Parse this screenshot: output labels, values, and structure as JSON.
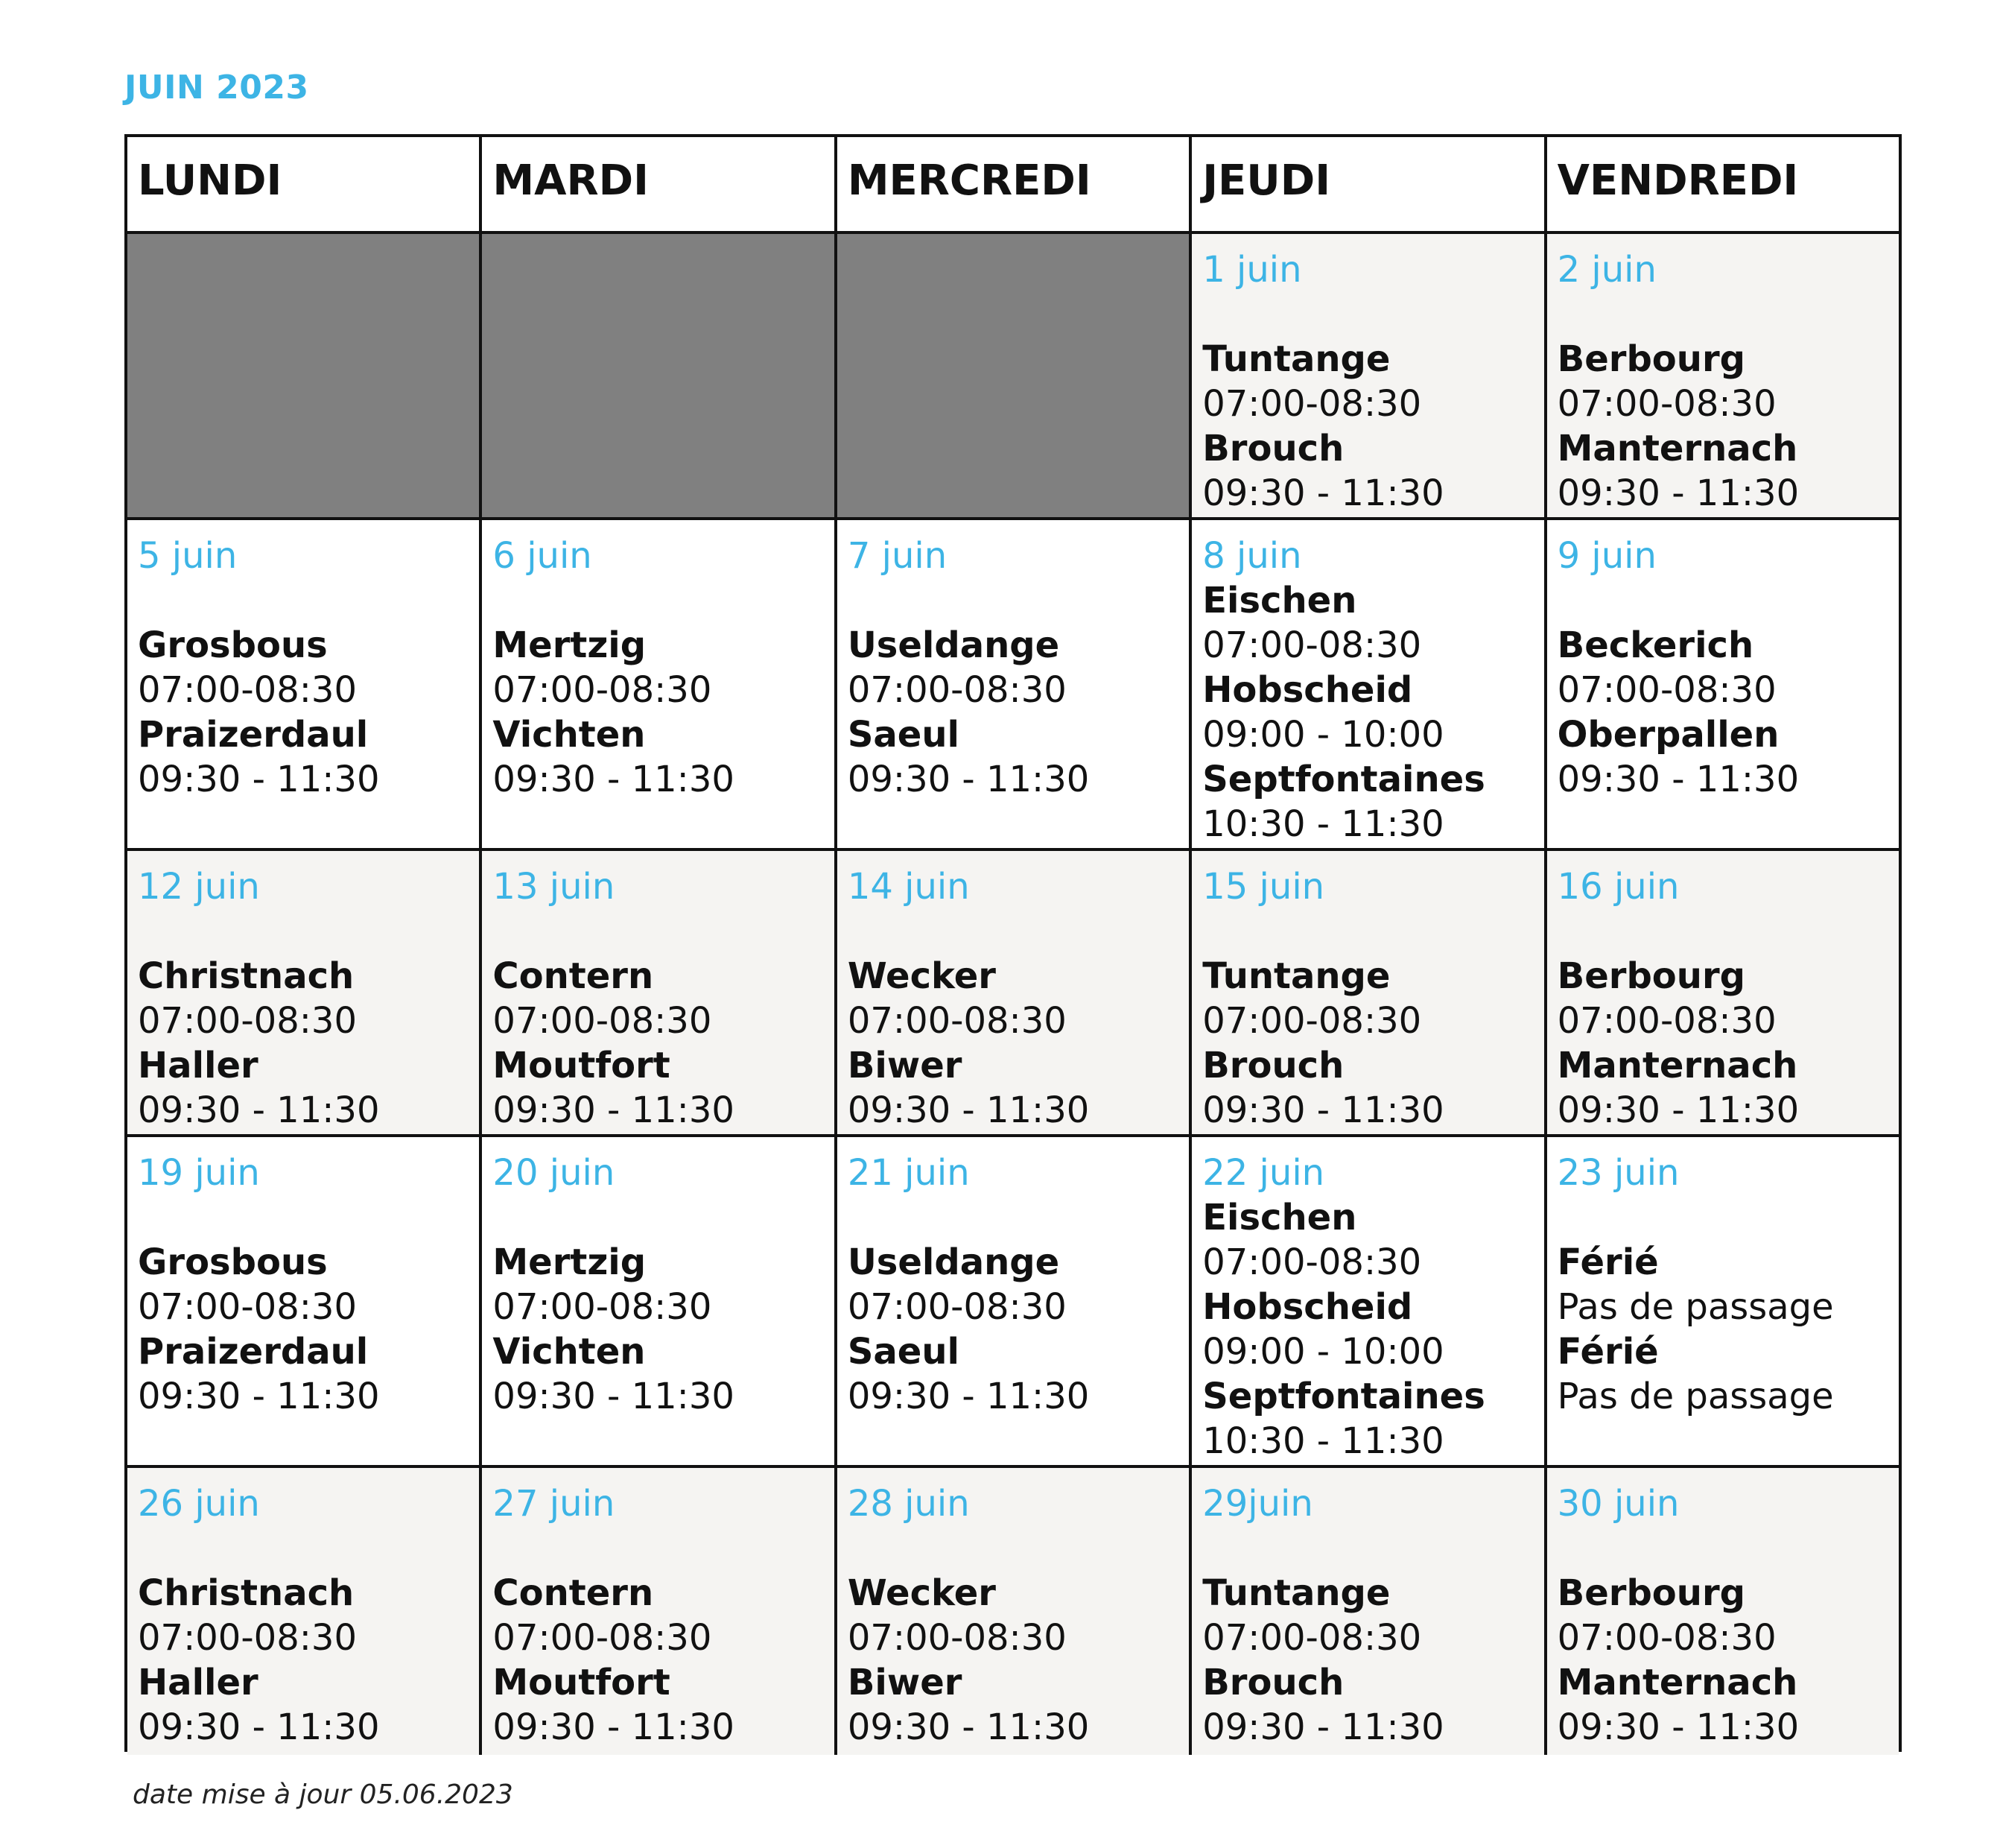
{
  "title": "JUIN 2023",
  "colors": {
    "accent": "#3db4e5",
    "border": "#111111",
    "shaded_row": "#f5f4f2",
    "empty_cell": "#808080"
  },
  "weekdays": [
    "LUNDI",
    "MARDI",
    "MERCREDI",
    "JEUDI",
    "VENDREDI"
  ],
  "weeks": [
    {
      "shaded": true,
      "days": [
        {
          "empty": true
        },
        {
          "empty": true
        },
        {
          "empty": true
        },
        {
          "date": "1 juin",
          "entries": [
            {
              "place": "Tuntange",
              "time": "07:00-08:30"
            },
            {
              "place": "Brouch",
              "time": "09:30 - 11:30"
            }
          ]
        },
        {
          "date": "2 juin",
          "entries": [
            {
              "place": "Berbourg",
              "time": "07:00-08:30"
            },
            {
              "place": "Manternach",
              "time": "09:30 - 11:30"
            }
          ]
        }
      ]
    },
    {
      "shaded": false,
      "days": [
        {
          "date": "5 juin",
          "entries": [
            {
              "place": "Grosbous",
              "time": "07:00-08:30"
            },
            {
              "place": "Praizerdaul",
              "time": "09:30 - 11:30"
            }
          ]
        },
        {
          "date": "6 juin",
          "entries": [
            {
              "place": "Mertzig",
              "time": "07:00-08:30"
            },
            {
              "place": "Vichten",
              "time": "09:30 - 11:30"
            }
          ]
        },
        {
          "date": "7 juin",
          "entries": [
            {
              "place": "Useldange",
              "time": "07:00-08:30"
            },
            {
              "place": "Saeul",
              "time": "09:30 - 11:30"
            }
          ]
        },
        {
          "date": "8 juin",
          "compact": true,
          "entries": [
            {
              "place": "Eischen",
              "time": "07:00-08:30"
            },
            {
              "place": "Hobscheid",
              "time": "09:00 - 10:00"
            },
            {
              "place": "Septfontaines",
              "time": "10:30 - 11:30"
            }
          ]
        },
        {
          "date": "9 juin",
          "entries": [
            {
              "place": "Beckerich",
              "time": "07:00-08:30"
            },
            {
              "place": "Oberpallen",
              "time": "09:30 - 11:30"
            }
          ]
        }
      ]
    },
    {
      "shaded": true,
      "days": [
        {
          "date": "12 juin",
          "entries": [
            {
              "place": "Christnach",
              "time": "07:00-08:30"
            },
            {
              "place": "Haller",
              "time": "09:30 - 11:30"
            }
          ]
        },
        {
          "date": "13 juin",
          "entries": [
            {
              "place": "Contern",
              "time": "07:00-08:30"
            },
            {
              "place": "Moutfort",
              "time": "09:30 - 11:30"
            }
          ]
        },
        {
          "date": "14 juin",
          "entries": [
            {
              "place": "Wecker",
              "time": "07:00-08:30"
            },
            {
              "place": "Biwer",
              "time": "09:30 - 11:30"
            }
          ]
        },
        {
          "date": "15 juin",
          "entries": [
            {
              "place": "Tuntange",
              "time": "07:00-08:30"
            },
            {
              "place": "Brouch",
              "time": "09:30 - 11:30"
            }
          ]
        },
        {
          "date": "16 juin",
          "entries": [
            {
              "place": "Berbourg",
              "time": "07:00-08:30"
            },
            {
              "place": "Manternach",
              "time": "09:30 - 11:30"
            }
          ]
        }
      ]
    },
    {
      "shaded": false,
      "days": [
        {
          "date": "19 juin",
          "entries": [
            {
              "place": "Grosbous",
              "time": "07:00-08:30"
            },
            {
              "place": "Praizerdaul",
              "time": "09:30 - 11:30"
            }
          ]
        },
        {
          "date": "20 juin",
          "entries": [
            {
              "place": "Mertzig",
              "time": "07:00-08:30"
            },
            {
              "place": "Vichten",
              "time": "09:30 - 11:30"
            }
          ]
        },
        {
          "date": "21 juin",
          "entries": [
            {
              "place": "Useldange",
              "time": "07:00-08:30"
            },
            {
              "place": "Saeul",
              "time": "09:30 - 11:30"
            }
          ]
        },
        {
          "date": "22 juin",
          "compact": true,
          "entries": [
            {
              "place": "Eischen",
              "time": "07:00-08:30"
            },
            {
              "place": "Hobscheid",
              "time": "09:00 - 10:00"
            },
            {
              "place": "Septfontaines",
              "time": "10:30 - 11:30"
            }
          ]
        },
        {
          "date": "23 juin",
          "entries": [
            {
              "place": "Férié",
              "time": "Pas de passage"
            },
            {
              "place": "Férié",
              "time": "Pas de passage"
            }
          ]
        }
      ]
    },
    {
      "shaded": true,
      "days": [
        {
          "date": "26 juin",
          "entries": [
            {
              "place": "Christnach",
              "time": "07:00-08:30"
            },
            {
              "place": "Haller",
              "time": "09:30 - 11:30"
            }
          ]
        },
        {
          "date": "27 juin",
          "entries": [
            {
              "place": "Contern",
              "time": "07:00-08:30"
            },
            {
              "place": "Moutfort",
              "time": "09:30 - 11:30"
            }
          ]
        },
        {
          "date": "28 juin",
          "entries": [
            {
              "place": "Wecker",
              "time": "07:00-08:30"
            },
            {
              "place": "Biwer",
              "time": "09:30 - 11:30"
            }
          ]
        },
        {
          "date": "29juin",
          "entries": [
            {
              "place": "Tuntange",
              "time": "07:00-08:30"
            },
            {
              "place": "Brouch",
              "time": "09:30 - 11:30"
            }
          ]
        },
        {
          "date": "30 juin",
          "entries": [
            {
              "place": "Berbourg",
              "time": "07:00-08:30"
            },
            {
              "place": "Manternach",
              "time": "09:30 - 11:30"
            }
          ]
        }
      ]
    }
  ],
  "footer_note": "date mise à jour 05.06.2023"
}
